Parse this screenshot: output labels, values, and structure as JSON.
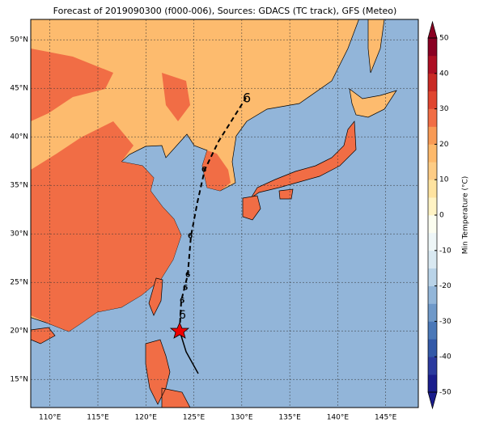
{
  "chart_data": {
    "type": "map",
    "title": "Forecast of 2019090300 (f000-006), Sources: GDACS (TC track), GFS (Meteo)",
    "xlim": [
      108,
      148.4
    ],
    "ylim": [
      12.1,
      52.1
    ],
    "xticks": [
      {
        "value": 110,
        "label": "110°E"
      },
      {
        "value": 115,
        "label": "115°E"
      },
      {
        "value": 120,
        "label": "120°E"
      },
      {
        "value": 125,
        "label": "125°E"
      },
      {
        "value": 130,
        "label": "130°E"
      },
      {
        "value": 135,
        "label": "135°E"
      },
      {
        "value": 140,
        "label": "140°E"
      },
      {
        "value": 145,
        "label": "145°E"
      }
    ],
    "yticks": [
      {
        "value": 15,
        "label": "15°N"
      },
      {
        "value": 20,
        "label": "20°N"
      },
      {
        "value": 25,
        "label": "25°N"
      },
      {
        "value": 30,
        "label": "30°N"
      },
      {
        "value": 35,
        "label": "35°N"
      },
      {
        "value": 40,
        "label": "40°N"
      },
      {
        "value": 45,
        "label": "45°N"
      },
      {
        "value": 50,
        "label": "50°N"
      }
    ],
    "grid": true,
    "colorbar": {
      "label": "Min Temperature (°C)",
      "lim": [
        -50,
        50
      ],
      "ticks": [
        -50,
        -40,
        -30,
        -20,
        -10,
        0,
        10,
        20,
        30,
        40,
        50
      ],
      "colors": [
        "#1a1d8c",
        "#2b3a9e",
        "#3359a8",
        "#4a78b8",
        "#6f99c9",
        "#93b6d9",
        "#b9d3e8",
        "#d9e9f2",
        "#eef6f7",
        "#fbfdf0",
        "#fff3c4",
        "#fee3a0",
        "#fdcc85",
        "#fdb96b",
        "#f89a55",
        "#f16d45",
        "#e0452f",
        "#c92a24",
        "#ad0f23",
        "#8a0022"
      ]
    }
  }
}
